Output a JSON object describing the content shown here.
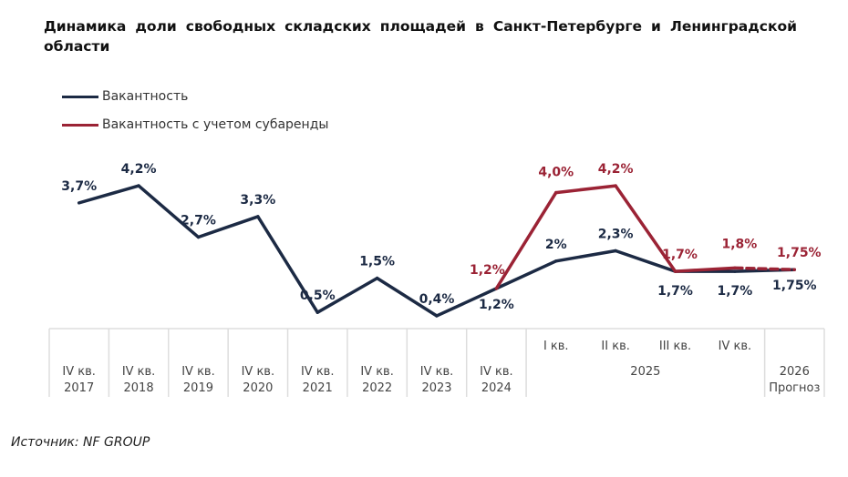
{
  "title": "Динамика доли свободных складских площадей в Санкт-Петербурге и Ленинградской области",
  "source": "Источник: NF GROUP",
  "chart_data": {
    "type": "line",
    "title": "Динамика доли свободных складских площадей в Санкт-Петербурге и Ленинградской области",
    "categories": [
      "IV кв. 2017",
      "IV кв. 2018",
      "IV кв. 2019",
      "IV кв. 2020",
      "IV кв. 2021",
      "IV кв. 2022",
      "IV кв. 2023",
      "IV кв. 2024",
      "I кв. 2025",
      "II кв. 2025",
      "III кв. 2025",
      "IV кв. 2025",
      "2026 Прогноз"
    ],
    "axis_rows": {
      "top": [
        "",
        "",
        "",
        "",
        "",
        "",
        "",
        "",
        "I кв.",
        "II кв.",
        "III кв.",
        "IV кв.",
        ""
      ],
      "bottom": [
        "IV кв.\n2017",
        "IV кв.\n2018",
        "IV кв.\n2019",
        "IV кв.\n2020",
        "IV кв.\n2021",
        "IV кв.\n2022",
        "IV кв.\n2023",
        "IV кв.\n2024",
        "",
        "",
        "",
        "",
        "2026\nПрогноз"
      ],
      "group_label": "2025"
    },
    "series": [
      {
        "name": "Вакантность",
        "color": "#1c2a44",
        "values": [
          3.7,
          4.2,
          2.7,
          3.3,
          0.5,
          1.5,
          0.4,
          1.2,
          2.0,
          2.3,
          1.7,
          1.7,
          1.75
        ],
        "labels": [
          "3,7%",
          "4,2%",
          "2,7%",
          "3,3%",
          "0,5%",
          "1,5%",
          "0,4%",
          "1,2%",
          "2%",
          "2,3%",
          "1,7%",
          "1,7%",
          "1,75%"
        ]
      },
      {
        "name": "Вакантность с учетом субаренды",
        "color": "#9b2335",
        "values": [
          null,
          null,
          null,
          null,
          null,
          null,
          null,
          1.2,
          4.0,
          4.2,
          1.7,
          1.8,
          1.75
        ],
        "labels": [
          "",
          "",
          "",
          "",
          "",
          "",
          "",
          "1,2%",
          "4,0%",
          "4,2%",
          "1,7%",
          "1,8%",
          "1,75%"
        ],
        "forecast_dashed": true
      }
    ],
    "ylim": [
      0,
      4.5
    ],
    "grid": false,
    "legend": "top-left",
    "unit": "%"
  }
}
